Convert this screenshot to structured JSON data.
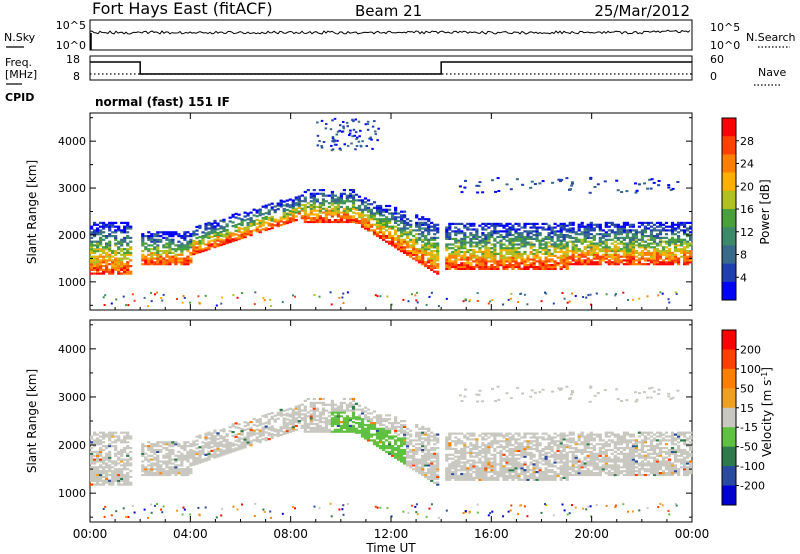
{
  "header": {
    "title": "Fort Hays East (fitACF)",
    "beam": "Beam 21",
    "date": "25/Mar/2012"
  },
  "labels": {
    "nsky": "N.Sky",
    "nsearch": "N.Search",
    "freq_line1": "Freq.",
    "freq_line2": "[MHz]",
    "nave": "Nave",
    "cpid": "CPID",
    "cpid_value": "normal (fast) 151 IF"
  },
  "noise_panel": {
    "left_ticks": [
      "10^5",
      "10^0"
    ],
    "right_ticks": [
      "10^5",
      "10^0"
    ]
  },
  "freq_panel": {
    "left_ticks": [
      "18",
      "8"
    ],
    "right_ticks": [
      "60",
      "0"
    ],
    "freq_steps": [
      {
        "start": 0,
        "end": 2,
        "level": "high"
      },
      {
        "start": 2,
        "end": 14,
        "level": "low"
      },
      {
        "start": 14,
        "end": 24,
        "level": "high"
      }
    ]
  },
  "colors": {
    "power_scale": [
      "#0000ff",
      "#2040b0",
      "#3a6a8a",
      "#3c8a6a",
      "#4aa03a",
      "#b0c020",
      "#ffb000",
      "#ff8000",
      "#ff4000",
      "#ff0000"
    ],
    "velocity_scale": [
      "#0000d0",
      "#2a4aa0",
      "#2f7a4a",
      "#60c040",
      "#c8c8c0",
      "#f0a020",
      "#ff8000",
      "#ff4000",
      "#ff0000"
    ]
  },
  "chart_data": [
    {
      "type": "heatmap",
      "name": "power",
      "ylabel": "Slant Range [km]",
      "yticks": [
        1000,
        2000,
        3000,
        4000
      ],
      "ylim": [
        400,
        4600
      ],
      "xlim": [
        0,
        24
      ],
      "colorbar_label": "Power [dB]",
      "colorbar_ticks": [
        "28",
        "24",
        "20",
        "16",
        "12",
        "8",
        "4"
      ],
      "echo_bands": [
        {
          "t0": 0.0,
          "t1": 1.6,
          "r0": 1200,
          "r1": 2300
        },
        {
          "t0": 2.0,
          "t1": 4.0,
          "r0": 1400,
          "r1": 2100
        },
        {
          "t0": 4.0,
          "t1": 8.5,
          "r0": 1600,
          "r1": 2800
        },
        {
          "t0": 8.5,
          "t1": 10.5,
          "r0": 2300,
          "r1": 3000
        },
        {
          "t0": 10.5,
          "t1": 13.8,
          "r0": 1200,
          "r1": 2600
        },
        {
          "t0": 14.0,
          "t1": 19.0,
          "r0": 1300,
          "r1": 2300
        },
        {
          "t0": 19.0,
          "t1": 24.0,
          "r0": 1400,
          "r1": 2300
        }
      ]
    },
    {
      "type": "heatmap",
      "name": "velocity",
      "ylabel": "Slant Range [km]",
      "yticks": [
        1000,
        2000,
        3000,
        4000
      ],
      "ylim": [
        400,
        4600
      ],
      "xlim": [
        0,
        24
      ],
      "colorbar_label": "Velocity [m s^-1]",
      "colorbar_ticks": [
        "200",
        "100",
        "50",
        "15",
        "-15",
        "-50",
        "-100",
        "-200"
      ],
      "xlabel": "Time UT",
      "xticks": [
        "00:00",
        "04:00",
        "08:00",
        "12:00",
        "16:00",
        "20:00",
        "00:00"
      ]
    }
  ]
}
